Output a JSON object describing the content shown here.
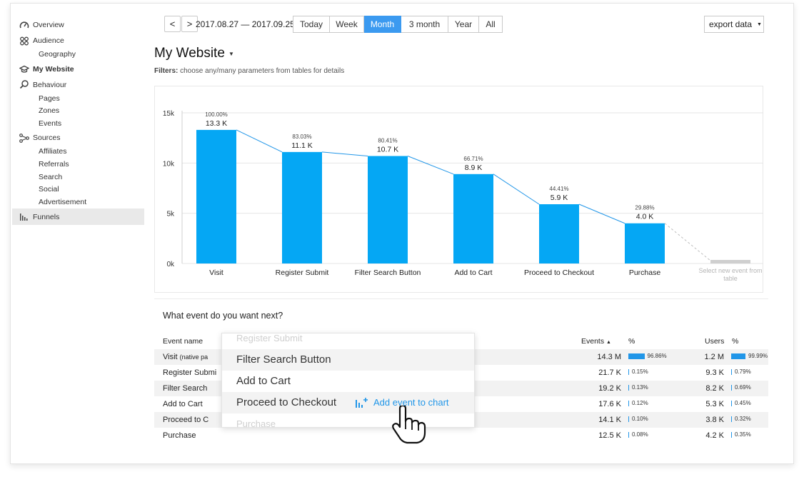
{
  "sidebar": {
    "items": [
      {
        "label": "Overview",
        "icon": "gauge-icon"
      },
      {
        "label": "Audience",
        "icon": "people-icon"
      },
      {
        "label": "Geography"
      },
      {
        "label": "My Website",
        "icon": "graduation-cap-icon"
      },
      {
        "label": "Behaviour",
        "icon": "magnifier-icon"
      },
      {
        "label": "Pages"
      },
      {
        "label": "Zones"
      },
      {
        "label": "Events"
      },
      {
        "label": "Sources",
        "icon": "share-nodes-icon"
      },
      {
        "label": "Affiliates"
      },
      {
        "label": "Referrals"
      },
      {
        "label": "Search"
      },
      {
        "label": "Social"
      },
      {
        "label": "Advertisement"
      },
      {
        "label": "Funnels",
        "icon": "bar-chart-icon"
      }
    ]
  },
  "topbar": {
    "prev_label": "<",
    "next_label": ">",
    "date_range": "2017.08.27 — 2017.09.25",
    "periods": [
      "Today",
      "Week",
      "Month",
      "3 month",
      "Year",
      "All"
    ],
    "active_period": "Month",
    "export_label": "export data",
    "accent_color": "#3b9af0"
  },
  "page": {
    "title": "My Website",
    "filters_label": "Filters:",
    "filters_text": "choose any/many parameters from tables for details"
  },
  "chart_data": {
    "type": "bar",
    "categories": [
      "Visit",
      "Register Submit",
      "Filter Search Button",
      "Add to Cart",
      "Proceed to Checkout",
      "Purchase"
    ],
    "values": [
      13300,
      11100,
      10700,
      8900,
      5900,
      4000
    ],
    "value_labels": [
      "13.3 K",
      "11.1 K",
      "10.7 K",
      "8.9 K",
      "5.9 K",
      "4.0 K"
    ],
    "percent_labels": [
      "100.00%",
      "83.03%",
      "80.41%",
      "66.71%",
      "44.41%",
      "29.88%"
    ],
    "y_ticks": [
      "0k",
      "5k",
      "10k",
      "15k"
    ],
    "ylim": [
      0,
      15000
    ],
    "placeholder_label": "Select new event from table",
    "bar_color": "#05a7f4",
    "line_color": "#2196e8",
    "grid": true
  },
  "table": {
    "question": "What event do you want next?",
    "headers": {
      "name": "Event name",
      "events": "Events",
      "events_sort": "▲",
      "events_pct": "%",
      "users": "Users",
      "users_pct": "%"
    },
    "rows": [
      {
        "name": "Visit",
        "note": "(native pa",
        "events": "14.3 M",
        "events_pct": "96.86%",
        "users": "1.2 M",
        "users_pct": "99.99%"
      },
      {
        "name": "Register Submi",
        "events": "21.7 K",
        "events_pct": "0.15%",
        "users": "9.3 K",
        "users_pct": "0.79%"
      },
      {
        "name": "Filter Search",
        "events": "19.2 K",
        "events_pct": "0.13%",
        "users": "8.2 K",
        "users_pct": "0.69%"
      },
      {
        "name": "Add to Cart",
        "events": "17.6 K",
        "events_pct": "0.12%",
        "users": "5.3 K",
        "users_pct": "0.45%"
      },
      {
        "name": "Proceed to C",
        "events": "14.1 K",
        "events_pct": "0.10%",
        "users": "3.8 K",
        "users_pct": "0.32%"
      },
      {
        "name": "Purchase",
        "events": "12.5 K",
        "events_pct": "0.08%",
        "users": "4.2 K",
        "users_pct": "0.35%"
      }
    ]
  },
  "dropdown": {
    "items": [
      "Register Submit",
      "Filter Search Button",
      "Add to Cart",
      "Proceed to Checkout",
      "Purchase"
    ],
    "add_event_label": "Add event to chart"
  }
}
